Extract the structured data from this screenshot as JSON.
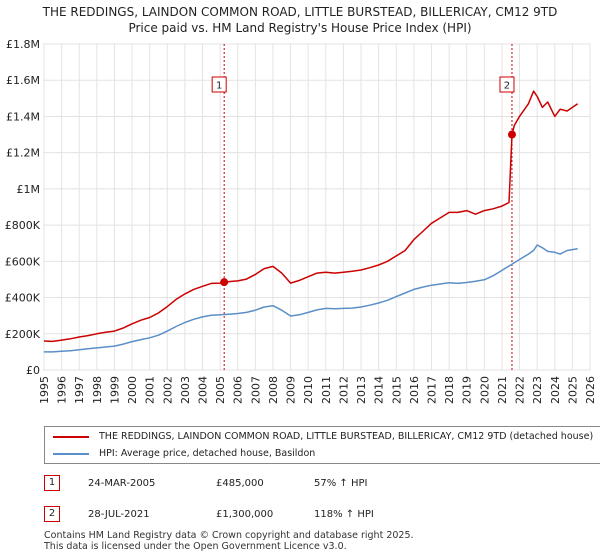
{
  "title_line1": "THE REDDINGS, LAINDON COMMON ROAD, LITTLE BURSTEAD, BILLERICAY, CM12 9TD",
  "title_line2": "Price paid vs. HM Land Registry's House Price Index (HPI)",
  "chart_data": {
    "type": "line",
    "title": "THE REDDINGS, LAINDON COMMON ROAD, LITTLE BURSTEAD, BILLERICAY, CM12 9TD — Price paid vs. HM Land Registry's House Price Index (HPI)",
    "xlabel": "",
    "ylabel": "",
    "xlim": [
      1995,
      2026
    ],
    "ylim": [
      0,
      1800000
    ],
    "x_ticks": [
      1995,
      1996,
      1997,
      1998,
      1999,
      2000,
      2001,
      2002,
      2003,
      2004,
      2005,
      2006,
      2007,
      2008,
      2009,
      2010,
      2011,
      2012,
      2013,
      2014,
      2015,
      2016,
      2017,
      2018,
      2019,
      2020,
      2021,
      2022,
      2023,
      2024,
      2025,
      2026
    ],
    "y_ticks": [
      0,
      200000,
      400000,
      600000,
      800000,
      1000000,
      1200000,
      1400000,
      1600000,
      1800000
    ],
    "y_tick_labels": [
      "£0",
      "£200K",
      "£400K",
      "£600K",
      "£800K",
      "£1M",
      "£1.2M",
      "£1.4M",
      "£1.6M",
      "£1.8M"
    ],
    "grid": true,
    "series": [
      {
        "name": "THE REDDINGS, LAINDON COMMON ROAD, LITTLE BURSTEAD, BILLERICAY, CM12 9TD (detached house)",
        "color": "#cc0000",
        "x": [
          1995.0,
          1995.5,
          1996.0,
          1996.5,
          1997.0,
          1997.5,
          1998.0,
          1998.5,
          1999.0,
          1999.5,
          2000.0,
          2000.5,
          2001.0,
          2001.5,
          2002.0,
          2002.5,
          2003.0,
          2003.5,
          2004.0,
          2004.5,
          2005.0,
          2005.23,
          2005.5,
          2006.0,
          2006.5,
          2007.0,
          2007.5,
          2008.0,
          2008.5,
          2009.0,
          2009.5,
          2010.0,
          2010.5,
          2011.0,
          2011.5,
          2012.0,
          2012.5,
          2013.0,
          2013.5,
          2014.0,
          2014.5,
          2015.0,
          2015.5,
          2016.0,
          2016.5,
          2017.0,
          2017.5,
          2018.0,
          2018.5,
          2019.0,
          2019.5,
          2020.0,
          2020.5,
          2021.0,
          2021.4,
          2021.57,
          2021.7,
          2022.0,
          2022.5,
          2022.8,
          2023.0,
          2023.3,
          2023.6,
          2024.0,
          2024.3,
          2024.7,
          2025.0,
          2025.3
        ],
        "values": [
          160000,
          158000,
          165000,
          172000,
          182000,
          190000,
          200000,
          208000,
          215000,
          232000,
          255000,
          275000,
          290000,
          315000,
          350000,
          390000,
          420000,
          445000,
          462000,
          478000,
          480000,
          485000,
          488000,
          492000,
          502000,
          528000,
          560000,
          572000,
          535000,
          480000,
          495000,
          515000,
          535000,
          540000,
          535000,
          540000,
          545000,
          552000,
          565000,
          580000,
          600000,
          630000,
          660000,
          720000,
          765000,
          810000,
          840000,
          870000,
          870000,
          880000,
          860000,
          880000,
          890000,
          905000,
          925000,
          1300000,
          1350000,
          1400000,
          1470000,
          1540000,
          1510000,
          1450000,
          1480000,
          1400000,
          1440000,
          1430000,
          1450000,
          1470000
        ]
      },
      {
        "name": "HPI: Average price, detached house, Basildon",
        "color": "#5b8fc7",
        "x": [
          1995.0,
          1995.5,
          1996.0,
          1996.5,
          1997.0,
          1997.5,
          1998.0,
          1998.5,
          1999.0,
          1999.5,
          2000.0,
          2000.5,
          2001.0,
          2001.5,
          2002.0,
          2002.5,
          2003.0,
          2003.5,
          2004.0,
          2004.5,
          2005.0,
          2005.5,
          2006.0,
          2006.5,
          2007.0,
          2007.5,
          2008.0,
          2008.5,
          2009.0,
          2009.5,
          2010.0,
          2010.5,
          2011.0,
          2011.5,
          2012.0,
          2012.5,
          2013.0,
          2013.5,
          2014.0,
          2014.5,
          2015.0,
          2015.5,
          2016.0,
          2016.5,
          2017.0,
          2017.5,
          2018.0,
          2018.5,
          2019.0,
          2019.5,
          2020.0,
          2020.5,
          2021.0,
          2021.5,
          2022.0,
          2022.5,
          2022.8,
          2023.0,
          2023.3,
          2023.6,
          2024.0,
          2024.3,
          2024.7,
          2025.0,
          2025.3
        ],
        "values": [
          100000,
          100000,
          103000,
          106000,
          112000,
          117000,
          122000,
          127000,
          132000,
          143000,
          157000,
          168000,
          178000,
          192000,
          215000,
          240000,
          262000,
          280000,
          293000,
          302000,
          305000,
          308000,
          312000,
          318000,
          330000,
          348000,
          355000,
          330000,
          298000,
          305000,
          318000,
          332000,
          340000,
          338000,
          340000,
          342000,
          348000,
          358000,
          370000,
          385000,
          405000,
          425000,
          445000,
          458000,
          468000,
          475000,
          482000,
          478000,
          483000,
          490000,
          498000,
          520000,
          550000,
          580000,
          610000,
          640000,
          660000,
          690000,
          675000,
          655000,
          650000,
          640000,
          660000,
          665000,
          670000
        ]
      }
    ],
    "annotations": [
      {
        "label": "1",
        "x": 2005.23,
        "value": 485000,
        "date": "24-MAR-2005",
        "price": "£485,000",
        "hpi": "57% ↑ HPI"
      },
      {
        "label": "2",
        "x": 2021.57,
        "value": 1300000,
        "date": "28-JUL-2021",
        "price": "£1,300,000",
        "hpi": "118% ↑ HPI"
      }
    ]
  },
  "legend": {
    "property_label": "THE REDDINGS, LAINDON COMMON ROAD, LITTLE BURSTEAD, BILLERICAY, CM12 9TD (detached house)",
    "hpi_label": "HPI: Average price, detached house, Basildon"
  },
  "sales": [
    {
      "num": "1",
      "date": "24-MAR-2005",
      "price": "£485,000",
      "hpi": "57% ↑ HPI"
    },
    {
      "num": "2",
      "date": "28-JUL-2021",
      "price": "£1,300,000",
      "hpi": "118% ↑ HPI"
    }
  ],
  "footer_line1": "Contains HM Land Registry data © Crown copyright and database right 2025.",
  "footer_line2": "This data is licensed under the Open Government Licence v3.0.",
  "colors": {
    "property": "#cc0000",
    "hpi": "#5b8fc7",
    "sale_line": "#cc0000",
    "grid": "#e3e3e3",
    "plot_bg": "#ffffff"
  }
}
